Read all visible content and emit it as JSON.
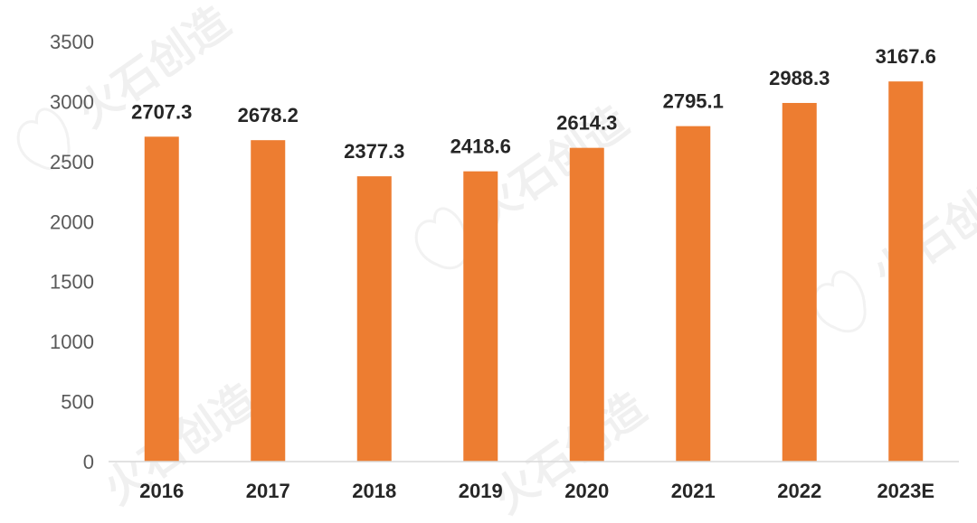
{
  "watermark": "火石创造",
  "chart_data": {
    "type": "bar",
    "categories": [
      "2016",
      "2017",
      "2018",
      "2019",
      "2020",
      "2021",
      "2022",
      "2023E"
    ],
    "values": [
      2707.3,
      2678.2,
      2377.3,
      2418.6,
      2614.3,
      2795.1,
      2988.3,
      3167.6
    ],
    "data_labels": [
      "2707.3",
      "2678.2",
      "2377.3",
      "2418.6",
      "2614.3",
      "2795.1",
      "2988.3",
      "3167.6"
    ],
    "y_ticks": [
      "0",
      "500",
      "1000",
      "1500",
      "2000",
      "2500",
      "3000",
      "3500"
    ],
    "ylim": [
      0,
      3500
    ],
    "title": "",
    "xlabel": "",
    "ylabel": "",
    "grid": false,
    "legend": "none",
    "bar_color": "#ED7D31",
    "axis_color": "#D9D9D9"
  }
}
